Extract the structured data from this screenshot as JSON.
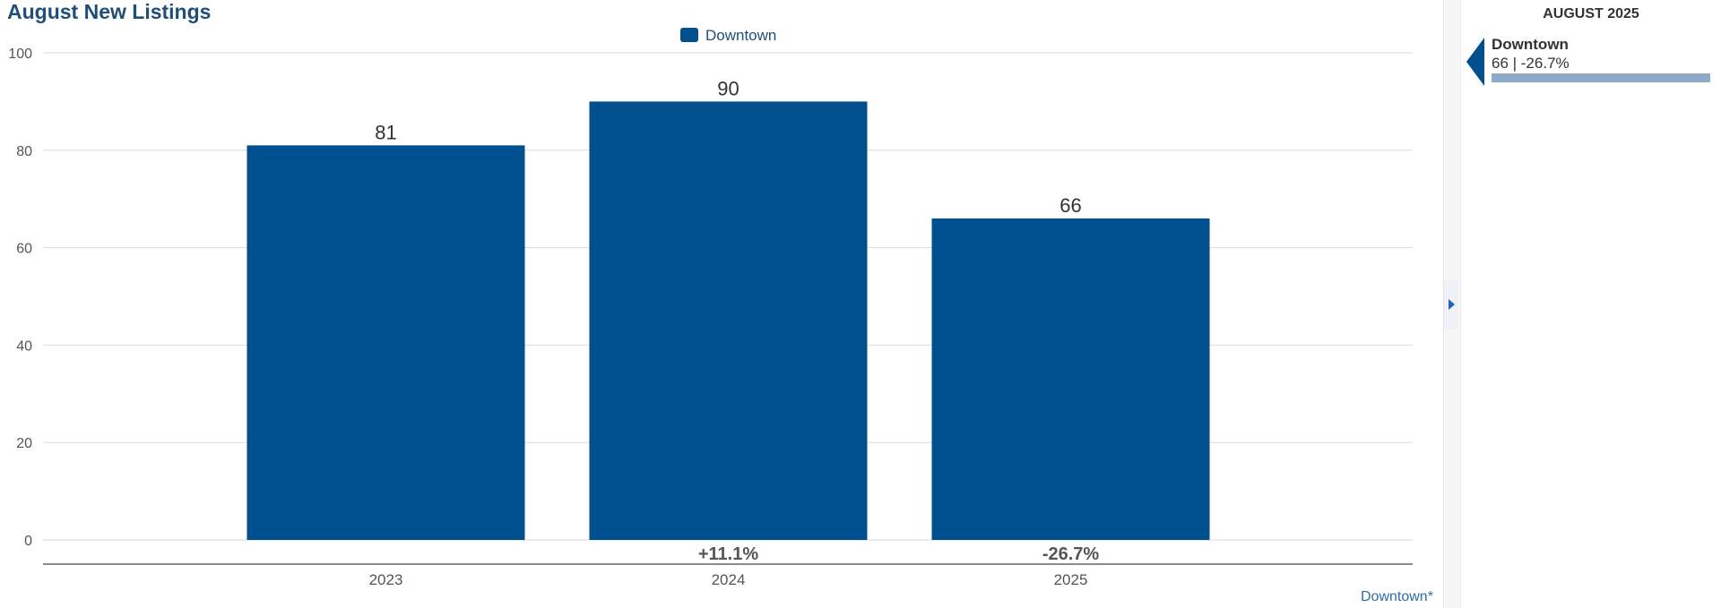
{
  "chart_data": {
    "type": "bar",
    "title": "August New Listings",
    "categories": [
      "2023",
      "2024",
      "2025"
    ],
    "series": [
      {
        "name": "Downtown",
        "values": [
          81,
          90,
          66
        ],
        "color": "#004f8e"
      }
    ],
    "data_labels": [
      "81",
      "90",
      "66"
    ],
    "change_labels": [
      "",
      "+11.1%",
      "-26.7%"
    ],
    "yticks": [
      "0",
      "20",
      "40",
      "60",
      "80",
      "100"
    ],
    "ylim": [
      0,
      100
    ],
    "xlabel": "",
    "ylabel": "",
    "grid": true,
    "legend": "top-center"
  },
  "side_panel": {
    "header": "AUGUST 2025",
    "items": [
      {
        "name": "Downtown",
        "value_text": "66 | -26.7%",
        "value": 66,
        "pointer_color": "#004f8e",
        "bar_color": "#8fa9c8"
      }
    ]
  },
  "footnote": "Downtown*"
}
